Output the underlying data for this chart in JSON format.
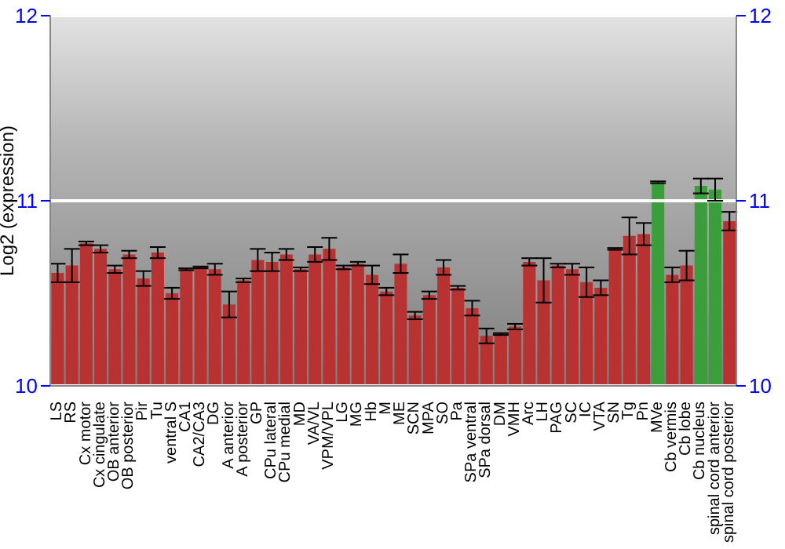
{
  "chart_data": {
    "type": "bar",
    "ylabel": "Log2 (expression)",
    "categories": [
      "LS",
      "RS",
      "Cx motor",
      "Cx cingulate",
      "OB anterior",
      "OB posterior",
      "Pir",
      "Tu",
      "ventral S",
      "CA1",
      "CA2/CA3",
      "DG",
      "A anterior",
      "A posterior",
      "GP",
      "CPu lateral",
      "CPu medial",
      "MD",
      "VA/VL",
      "VPM/VPL",
      "LG",
      "MG",
      "Hb",
      "M",
      "ME",
      "SCN",
      "MPA",
      "SO",
      "Pa",
      "SPa ventral",
      "SPa dorsal",
      "DM",
      "VMH",
      "Arc",
      "LH",
      "PAG",
      "SC",
      "IC",
      "VTA",
      "SN",
      "Tg",
      "Pn",
      "MVe",
      "Cb vermis",
      "Cb lobe",
      "Cb nucleus",
      "spinal cord anterior",
      "spinal cord posterior"
    ],
    "values": [
      10.61,
      10.65,
      10.77,
      10.74,
      10.63,
      10.71,
      10.58,
      10.72,
      10.5,
      10.63,
      10.64,
      10.63,
      10.44,
      10.57,
      10.68,
      10.67,
      10.71,
      10.63,
      10.71,
      10.74,
      10.64,
      10.66,
      10.6,
      10.51,
      10.66,
      10.38,
      10.49,
      10.64,
      10.53,
      10.42,
      10.27,
      10.28,
      10.32,
      10.67,
      10.57,
      10.65,
      10.63,
      10.56,
      10.53,
      10.74,
      10.81,
      10.82,
      11.1,
      10.6,
      10.65,
      11.08,
      11.06,
      10.89
    ],
    "errors": [
      0.05,
      0.09,
      0.01,
      0.02,
      0.02,
      0.02,
      0.04,
      0.03,
      0.03,
      0.005,
      0.005,
      0.03,
      0.07,
      0.01,
      0.06,
      0.05,
      0.03,
      0.01,
      0.04,
      0.06,
      0.01,
      0.01,
      0.05,
      0.02,
      0.05,
      0.02,
      0.02,
      0.04,
      0.01,
      0.04,
      0.04,
      0.005,
      0.015,
      0.02,
      0.12,
      0.01,
      0.03,
      0.08,
      0.04,
      0.005,
      0.1,
      0.06,
      0.005,
      0.04,
      0.08,
      0.04,
      0.06,
      0.05
    ],
    "colors": [
      "#b83232",
      "#b83232",
      "#b83232",
      "#b83232",
      "#b83232",
      "#b83232",
      "#b83232",
      "#b83232",
      "#b83232",
      "#b83232",
      "#b83232",
      "#b83232",
      "#b83232",
      "#b83232",
      "#b83232",
      "#b83232",
      "#b83232",
      "#b83232",
      "#b83232",
      "#b83232",
      "#b83232",
      "#b83232",
      "#b83232",
      "#b83232",
      "#b83232",
      "#b83232",
      "#b83232",
      "#b83232",
      "#b83232",
      "#b83232",
      "#b83232",
      "#b83232",
      "#b83232",
      "#b83232",
      "#b83232",
      "#b83232",
      "#b83232",
      "#b83232",
      "#b83232",
      "#b83232",
      "#b83232",
      "#b83232",
      "#3a9e3a",
      "#b83232",
      "#b83232",
      "#3a9e3a",
      "#3a9e3a",
      "#b83232"
    ],
    "ylim": [
      10,
      12
    ],
    "yticks": [
      10,
      11,
      12
    ],
    "y2lim": [
      10,
      12
    ],
    "y2ticks": [
      10,
      11,
      12
    ],
    "grid": "y"
  }
}
